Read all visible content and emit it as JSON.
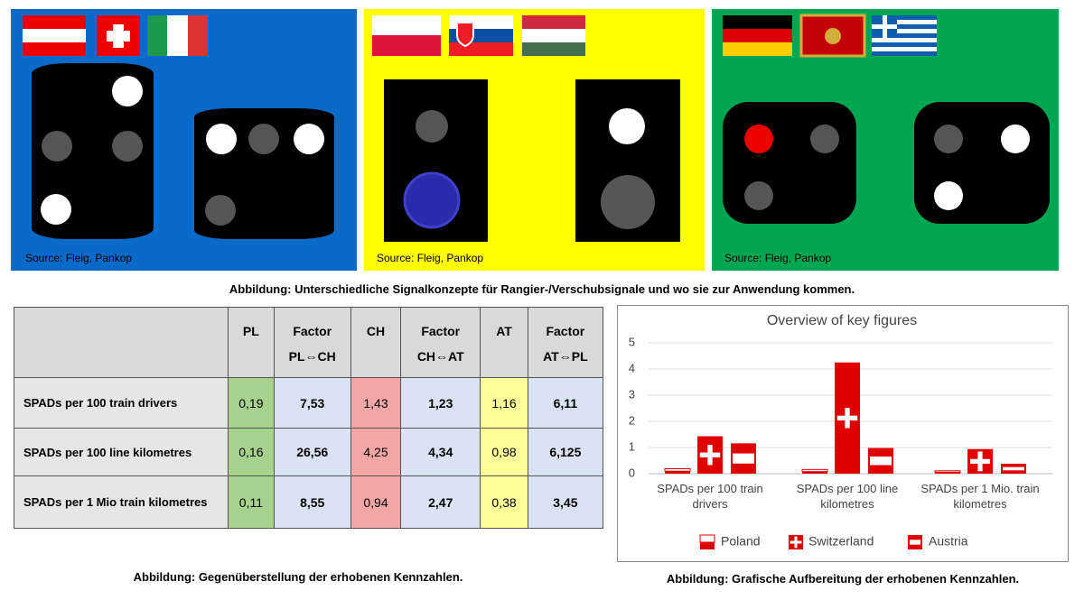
{
  "panels": [
    {
      "source": "Source: Fleig, Pankop"
    },
    {
      "source": "Source: Fleig, Pankop"
    },
    {
      "source": "Source: Fleig, Pankop"
    }
  ],
  "caption": "Abbildung: Unterschiedliche Signalkonzepte für Rangier-/Verschubsignale und wo sie zur Anwendung kommen.",
  "table": {
    "header": [
      [
        "PL"
      ],
      [
        "Factor",
        "PL⇔CH"
      ],
      [
        "CH"
      ],
      [
        "Factor",
        "CH⇔AT"
      ],
      [
        "AT"
      ],
      [
        "Factor",
        "AT⇔PL"
      ]
    ],
    "rows": [
      [
        "SPADs per 100 train drivers",
        "0,19",
        "7,53",
        "1,43",
        "1,23",
        "1,16",
        "6,11"
      ],
      [
        "SPADs per 100 line kilometres",
        "0,16",
        "26,56",
        "4,25",
        "4,34",
        "0,98",
        "6,125"
      ],
      [
        "SPADs per 1 Mio train kilometres",
        "0,11",
        "8,55",
        "0,94",
        "2,47",
        "0,38",
        "3,45"
      ]
    ],
    "caption": "Abbildung: Gegenüberstellung der erhobenen Kennzahlen."
  },
  "chart_data": {
    "type": "bar",
    "title": "Overview of key figures",
    "categories": [
      "SPADs per 100 train drivers",
      "SPADs per 100 line kilometres",
      "SPADs per 1 Mio. train kilometres"
    ],
    "series": [
      {
        "name": "Poland",
        "color": "#e00000",
        "values": [
          0.19,
          0.16,
          0.11
        ]
      },
      {
        "name": "Switzerland",
        "color": "#e00000",
        "values": [
          1.43,
          4.25,
          0.94
        ]
      },
      {
        "name": "Austria",
        "color": "#e00000",
        "values": [
          1.16,
          0.98,
          0.38
        ]
      }
    ],
    "ylim": [
      0,
      5
    ],
    "yticks": [
      0,
      1,
      2,
      3,
      4,
      5
    ],
    "grid": true
  },
  "chart_caption": "Abbildung: Grafische Aufbereitung der erhobenen Kennzahlen."
}
